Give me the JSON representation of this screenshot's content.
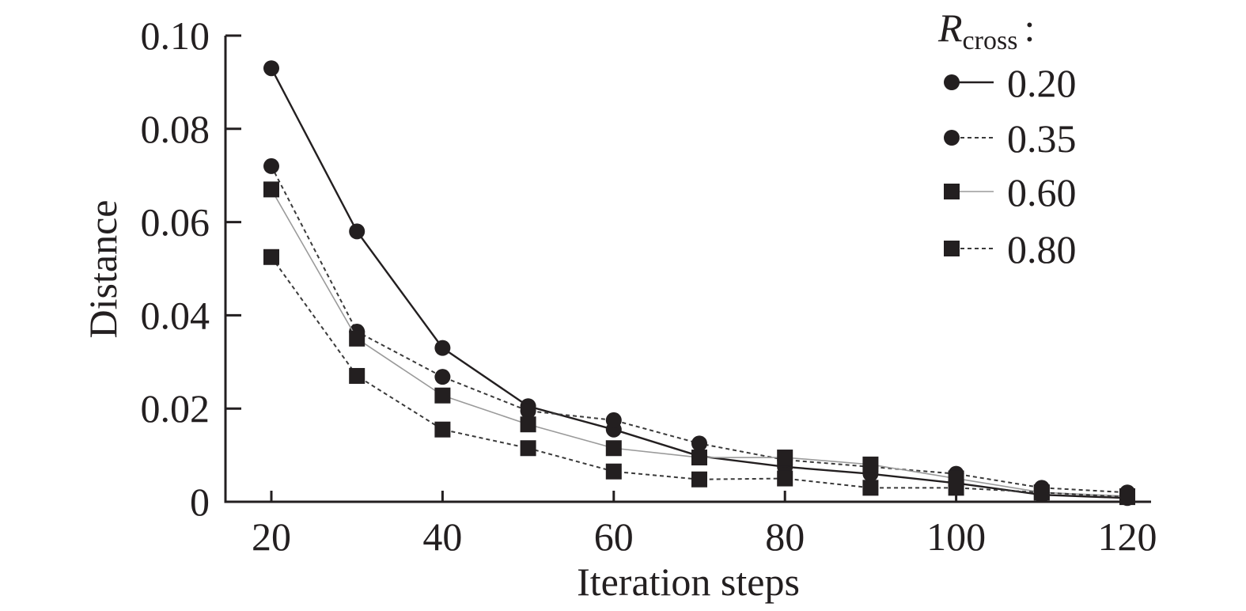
{
  "chart_data": {
    "type": "line",
    "title": "",
    "xlabel": "Iteration steps",
    "ylabel": "Distance",
    "x": [
      20,
      30,
      40,
      50,
      60,
      70,
      80,
      90,
      100,
      110,
      120
    ],
    "xlim": [
      15,
      125
    ],
    "ylim": [
      0,
      0.1
    ],
    "xticks": [
      20,
      40,
      60,
      80,
      100,
      120
    ],
    "xtick_labels": [
      "20",
      "40",
      "60",
      "80",
      "100",
      "120"
    ],
    "yticks": [
      0,
      0.02,
      0.04,
      0.06,
      0.08,
      0.1
    ],
    "ytick_labels": [
      "0",
      "0.02",
      "0.04",
      "0.06",
      "0.08",
      "0.10"
    ],
    "grid": false,
    "legend_title": "R_cross:",
    "legend_position": "upper right",
    "series": [
      {
        "name": "0.20",
        "marker": "circle",
        "line": "solid-thick",
        "color": "#231f20",
        "values": [
          0.093,
          0.058,
          0.033,
          0.0205,
          0.0155,
          0.0098,
          0.0075,
          0.006,
          0.004,
          0.0015,
          0.0008
        ]
      },
      {
        "name": "0.35",
        "marker": "circle",
        "line": "dashed",
        "color": "#231f20",
        "values": [
          0.072,
          0.0365,
          0.0268,
          0.0195,
          0.0175,
          0.0125,
          0.009,
          0.0075,
          0.006,
          0.003,
          0.002
        ]
      },
      {
        "name": "0.60",
        "marker": "square",
        "line": "solid-thin-gray",
        "color": "#231f20",
        "values": [
          0.067,
          0.035,
          0.0228,
          0.0166,
          0.0115,
          0.0095,
          0.0095,
          0.008,
          0.005,
          0.002,
          0.0012
        ]
      },
      {
        "name": "0.80",
        "marker": "square",
        "line": "dashed",
        "color": "#231f20",
        "values": [
          0.0525,
          0.027,
          0.0155,
          0.0115,
          0.0065,
          0.0048,
          0.005,
          0.003,
          0.003,
          0.002,
          0.001
        ]
      }
    ]
  },
  "legend": {
    "title_main": "R",
    "title_sub": "cross",
    "title_suffix": ":",
    "items": [
      {
        "label": "0.20"
      },
      {
        "label": "0.35"
      },
      {
        "label": "0.60"
      },
      {
        "label": "0.80"
      }
    ]
  }
}
